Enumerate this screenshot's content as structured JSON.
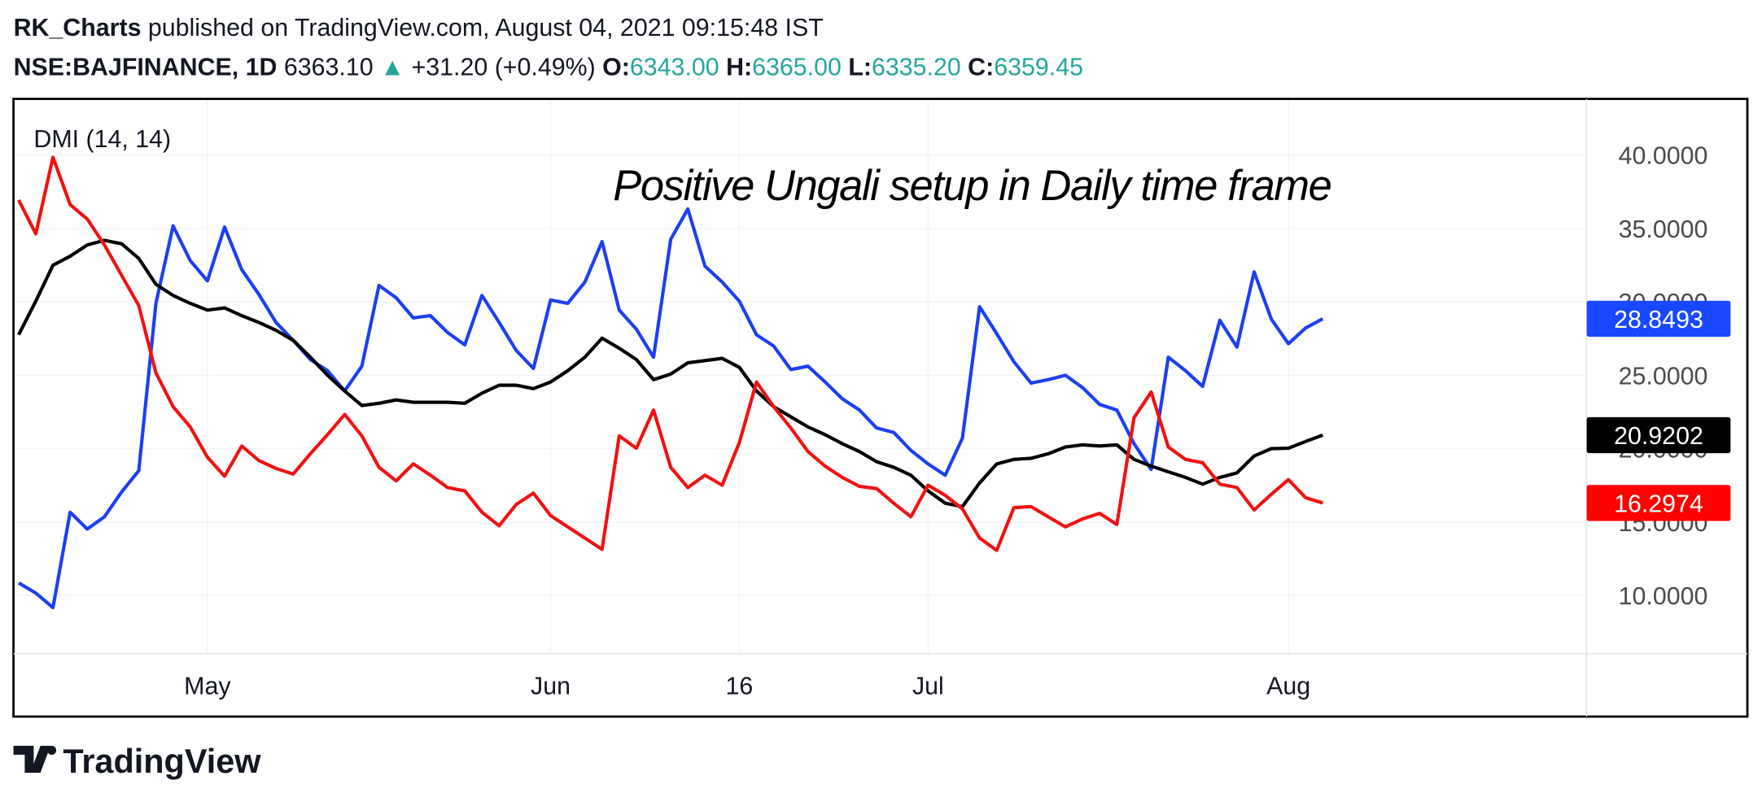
{
  "header": {
    "author": "RK_Charts",
    "published": "published on TradingView.com, August 04, 2021 09:15:48 IST",
    "symbol": "NSE:BAJFINANCE, 1D",
    "price": "6363.10",
    "arrow": "▲",
    "change": "+31.20 (+0.49%)",
    "open_label": "O:",
    "open": "6343.00",
    "high_label": "H:",
    "high": "6365.00",
    "low_label": "L:",
    "low": "6335.20",
    "close_label": "C:",
    "close": "6359.45"
  },
  "footer": {
    "brand": "TradingView"
  },
  "chart_data": {
    "type": "line",
    "indicator": "DMI (14, 14)",
    "annotation": "Positive Ungali setup in Daily time frame",
    "categories": [
      null,
      null,
      null,
      null,
      null,
      null,
      null,
      null,
      null,
      null,
      null,
      "May",
      null,
      null,
      null,
      null,
      null,
      null,
      null,
      null,
      null,
      null,
      null,
      null,
      null,
      null,
      null,
      null,
      null,
      null,
      null,
      "Jun",
      null,
      null,
      null,
      null,
      null,
      null,
      null,
      null,
      null,
      null,
      "16",
      null,
      null,
      null,
      null,
      null,
      null,
      null,
      null,
      null,
      null,
      "Jul",
      null,
      null,
      null,
      null,
      null,
      null,
      null,
      null,
      null,
      null,
      null,
      null,
      null,
      null,
      null,
      null,
      null,
      null,
      null,
      null,
      "Aug",
      null,
      null
    ],
    "series": [
      {
        "color": "#1c3ff2",
        "label_color": "#1848ff",
        "values": [
          10.85,
          10.16,
          9.17,
          15.67,
          14.52,
          15.36,
          17.05,
          18.5,
          29.9,
          35.18,
          32.81,
          31.43,
          35.1,
          32.2,
          30.51,
          28.6,
          27.38,
          26.07,
          25.31,
          23.93,
          25.62,
          31.12,
          30.28,
          28.91,
          29.06,
          27.91,
          27.07,
          30.44,
          28.6,
          26.69,
          25.46,
          30.13,
          29.9,
          31.35,
          34.11,
          29.44,
          28.14,
          26.23,
          34.26,
          36.33,
          32.43,
          31.35,
          30.05,
          27.76,
          26.99,
          25.39,
          25.62,
          24.54,
          23.4,
          22.63,
          21.41,
          21.1,
          19.88,
          18.96,
          18.19,
          20.72,
          29.67,
          27.83,
          25.92,
          24.47,
          24.7,
          25.0,
          24.16,
          23.01,
          22.63,
          20.34,
          18.58,
          26.23,
          25.31,
          24.24,
          28.75,
          26.92,
          32.04,
          28.83,
          27.15,
          28.22,
          28.8493
        ]
      },
      {
        "color": "#000000",
        "label_color": "#000000",
        "values": [
          27.76,
          30.05,
          32.5,
          33.11,
          33.88,
          34.19,
          33.96,
          32.96,
          31.2,
          30.44,
          29.9,
          29.44,
          29.59,
          29.06,
          28.6,
          28.06,
          27.38,
          26.23,
          25.0,
          23.93,
          22.94,
          23.09,
          23.32,
          23.16,
          23.16,
          23.16,
          23.09,
          23.78,
          24.32,
          24.32,
          24.09,
          24.54,
          25.31,
          26.23,
          27.53,
          26.84,
          26.07,
          24.7,
          25.08,
          25.85,
          26.0,
          26.15,
          25.54,
          23.93,
          22.86,
          22.17,
          21.48,
          20.95,
          20.34,
          19.8,
          19.11,
          18.73,
          18.19,
          17.12,
          16.28,
          16.05,
          17.66,
          18.96,
          19.27,
          19.34,
          19.65,
          20.11,
          20.26,
          20.18,
          20.26,
          19.27,
          18.81,
          18.42,
          18.04,
          17.58,
          18.04,
          18.35,
          19.5,
          20.0,
          20.03,
          20.49,
          20.9202
        ]
      },
      {
        "color": "#f01212",
        "label_color": "#ff0000",
        "values": [
          36.94,
          34.64,
          39.85,
          36.63,
          35.64,
          33.88,
          31.81,
          29.75,
          25.16,
          22.86,
          21.48,
          19.42,
          18.12,
          20.18,
          19.19,
          18.65,
          18.27,
          19.65,
          20.95,
          22.33,
          20.87,
          18.73,
          17.81,
          18.96,
          18.19,
          17.35,
          17.12,
          15.67,
          14.75,
          16.2,
          16.97,
          15.44,
          14.67,
          13.91,
          13.14,
          20.87,
          20.03,
          22.63,
          18.73,
          17.35,
          18.19,
          17.51,
          20.41,
          24.54,
          22.86,
          21.41,
          19.8,
          18.81,
          18.04,
          17.43,
          17.28,
          16.28,
          15.36,
          17.51,
          16.82,
          15.9,
          13.91,
          13.07,
          15.98,
          16.05,
          15.36,
          14.67,
          15.21,
          15.59,
          14.83,
          22.1,
          23.86,
          20.11,
          19.27,
          19.04,
          17.58,
          17.35,
          15.82,
          16.89,
          17.89,
          16.66,
          16.2974
        ]
      }
    ],
    "ylim": [
      6.03,
      43.83
    ],
    "yticks": [
      {
        "value": 10,
        "label": "10.0000"
      },
      {
        "value": 15,
        "label": "15.0000"
      },
      {
        "value": 20,
        "label": "20.0000"
      },
      {
        "value": 25,
        "label": "25.0000"
      },
      {
        "value": 30,
        "label": "30.0000"
      },
      {
        "value": 35,
        "label": "35.0000"
      },
      {
        "value": 40,
        "label": "40.0000"
      }
    ],
    "grid": true
  }
}
